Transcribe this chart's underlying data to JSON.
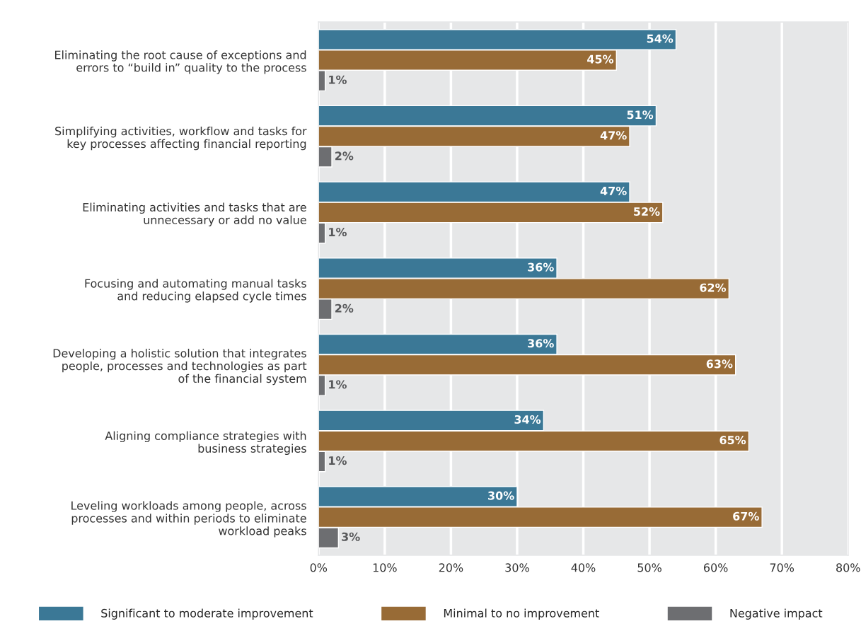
{
  "chart_data": {
    "type": "bar",
    "orientation": "horizontal",
    "categories": [
      "Eliminating the root cause of exceptions and\nerrors to “build in” quality to the process",
      "Simplifying activities, workflow and tasks for\nkey processes affecting financial reporting",
      "Eliminating activities and tasks that are\nunnecessary or add no value",
      "Focusing and automating manual tasks\nand reducing elapsed cycle times",
      "Developing a holistic solution that integrates\npeople, processes and technologies as part\nof the financial system",
      "Aligning compliance strategies with\nbusiness strategies",
      "Leveling workloads among people, across\nprocesses and within periods to eliminate\nworkload peaks"
    ],
    "series": [
      {
        "name": "Significant to moderate improvement",
        "color": "#3b7896",
        "values": [
          54,
          51,
          47,
          36,
          36,
          34,
          30
        ],
        "value_labels": [
          "54%",
          "51%",
          "47%",
          "36%",
          "36%",
          "34%",
          "30%"
        ]
      },
      {
        "name": "Minimal to no improvement",
        "color": "#986b36",
        "values": [
          45,
          47,
          52,
          62,
          63,
          65,
          67
        ],
        "value_labels": [
          "45%",
          "47%",
          "52%",
          "62%",
          "63%",
          "65%",
          "67%"
        ]
      },
      {
        "name": "Negative impact",
        "color": "#6d6e71",
        "values": [
          1,
          2,
          1,
          2,
          1,
          1,
          3
        ],
        "value_labels": [
          "1%",
          "2%",
          "1%",
          "2%",
          "1%",
          "1%",
          "3%"
        ]
      }
    ],
    "xlim": [
      0,
      80
    ],
    "xticks": [
      {
        "value": 0,
        "label": "0%"
      },
      {
        "value": 10,
        "label": "10%"
      },
      {
        "value": 20,
        "label": "20%"
      },
      {
        "value": 30,
        "label": "30%"
      },
      {
        "value": 40,
        "label": "40%"
      },
      {
        "value": 50,
        "label": "50%"
      },
      {
        "value": 60,
        "label": "60%"
      },
      {
        "value": 70,
        "label": "70%"
      },
      {
        "value": 80,
        "label": "80%"
      }
    ],
    "grid": "x",
    "legend": "bottom"
  }
}
